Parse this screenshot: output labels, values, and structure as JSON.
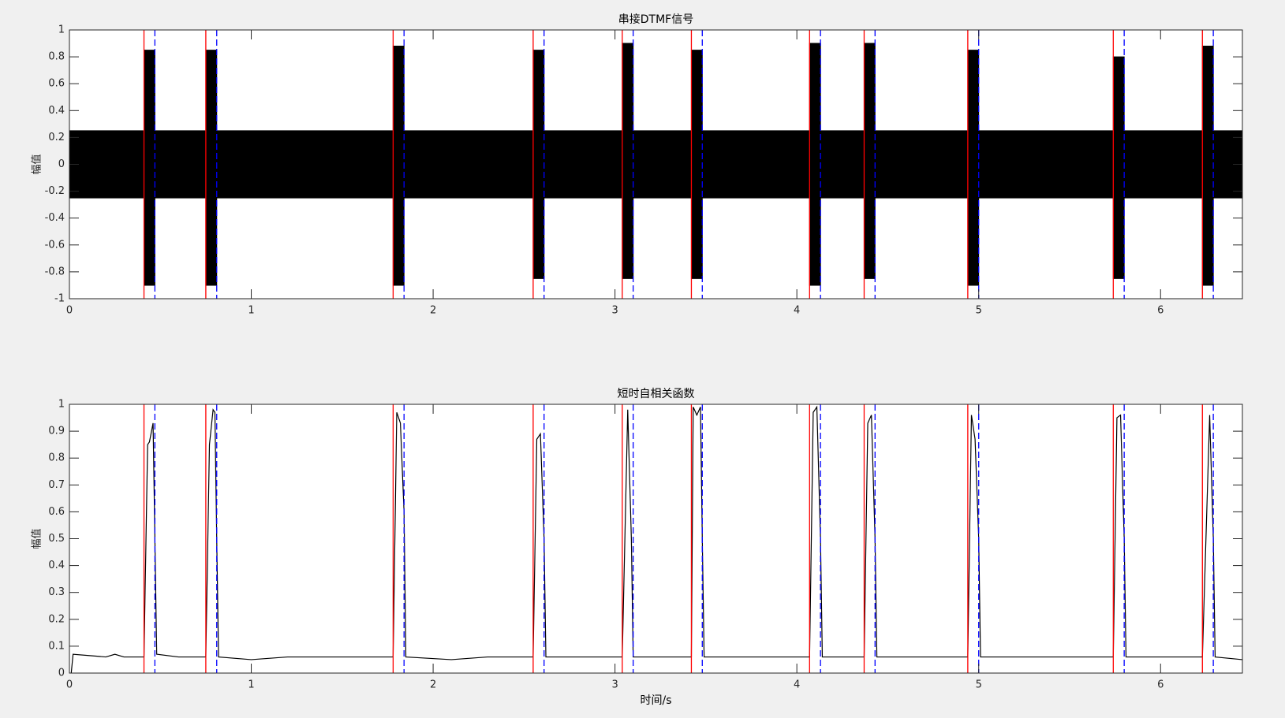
{
  "chart_data": [
    {
      "type": "area",
      "title": "串接DTMF信号",
      "ylabel": "幅值",
      "color": "#000000",
      "x": [
        0,
        0.41,
        0.41,
        0.47,
        0.47,
        0.75,
        0.75,
        0.81,
        0.81,
        1.78,
        1.78,
        1.84,
        1.84,
        2.55,
        2.55,
        2.61,
        2.61,
        3.04,
        3.04,
        3.1,
        3.1,
        3.42,
        3.42,
        3.48,
        3.48,
        4.07,
        4.07,
        4.13,
        4.13,
        4.37,
        4.37,
        4.43,
        4.43,
        4.94,
        4.94,
        5.0,
        5.0,
        5.74,
        5.74,
        5.8,
        5.8,
        6.23,
        6.23,
        6.29,
        6.29,
        6.45
      ],
      "upper": [
        0.25,
        0.25,
        0.85,
        0.85,
        0.25,
        0.25,
        0.85,
        0.85,
        0.25,
        0.25,
        0.88,
        0.88,
        0.25,
        0.25,
        0.85,
        0.85,
        0.25,
        0.25,
        0.9,
        0.9,
        0.25,
        0.25,
        0.85,
        0.85,
        0.25,
        0.25,
        0.9,
        0.9,
        0.25,
        0.25,
        0.9,
        0.9,
        0.25,
        0.25,
        0.85,
        0.85,
        0.25,
        0.25,
        0.8,
        0.8,
        0.25,
        0.25,
        0.88,
        0.88,
        0.25,
        0.25
      ],
      "lower": [
        -0.25,
        -0.25,
        -0.9,
        -0.9,
        -0.25,
        -0.25,
        -0.9,
        -0.9,
        -0.25,
        -0.25,
        -0.9,
        -0.9,
        -0.25,
        -0.25,
        -0.85,
        -0.85,
        -0.25,
        -0.25,
        -0.85,
        -0.85,
        -0.25,
        -0.25,
        -0.85,
        -0.85,
        -0.25,
        -0.25,
        -0.9,
        -0.9,
        -0.25,
        -0.25,
        -0.85,
        -0.85,
        -0.25,
        -0.25,
        -0.9,
        -0.9,
        -0.25,
        -0.25,
        -0.85,
        -0.85,
        -0.25,
        -0.25,
        -0.9,
        -0.9,
        -0.25,
        -0.25
      ],
      "onsets": [
        0.41,
        0.75,
        1.78,
        2.55,
        3.04,
        3.42,
        4.07,
        4.37,
        4.94,
        5.74,
        6.23
      ],
      "offsets": [
        0.47,
        0.81,
        1.84,
        2.61,
        3.1,
        3.48,
        4.13,
        4.43,
        5.0,
        5.8,
        6.29
      ],
      "onset_color": "#ff0000",
      "offset_color": "#0000ff",
      "xlim": [
        0,
        6.45
      ],
      "ylim": [
        -1,
        1
      ],
      "xticks": [
        0,
        1,
        2,
        3,
        4,
        5,
        6
      ],
      "yticks": [
        -1,
        -0.8,
        -0.6,
        -0.4,
        -0.2,
        0,
        0.2,
        0.4,
        0.6,
        0.8,
        1
      ]
    },
    {
      "type": "line",
      "title": "短时自相关函数",
      "ylabel": "幅值",
      "xlabel": "时间/s",
      "color": "#000000",
      "x": [
        0.01,
        0.02,
        0.2,
        0.25,
        0.3,
        0.41,
        0.43,
        0.44,
        0.46,
        0.47,
        0.48,
        0.6,
        0.75,
        0.77,
        0.79,
        0.8,
        0.81,
        0.82,
        1.0,
        1.2,
        1.4,
        1.78,
        1.8,
        1.82,
        1.84,
        1.85,
        2.1,
        2.3,
        2.55,
        2.57,
        2.59,
        2.61,
        2.62,
        2.8,
        3.04,
        3.07,
        3.09,
        3.1,
        3.25,
        3.42,
        3.43,
        3.45,
        3.47,
        3.48,
        3.49,
        3.8,
        4.07,
        4.09,
        4.11,
        4.13,
        4.14,
        4.25,
        4.37,
        4.39,
        4.41,
        4.43,
        4.44,
        4.7,
        4.94,
        4.96,
        4.98,
        5.0,
        5.01,
        5.3,
        5.6,
        5.74,
        5.76,
        5.78,
        5.8,
        5.81,
        6.0,
        6.23,
        6.27,
        6.29,
        6.3,
        6.45
      ],
      "values": [
        0,
        0.07,
        0.06,
        0.07,
        0.06,
        0.06,
        0.85,
        0.86,
        0.93,
        0.5,
        0.07,
        0.06,
        0.06,
        0.85,
        0.98,
        0.97,
        0.5,
        0.06,
        0.05,
        0.06,
        0.06,
        0.06,
        0.97,
        0.93,
        0.6,
        0.06,
        0.05,
        0.06,
        0.06,
        0.87,
        0.89,
        0.5,
        0.06,
        0.06,
        0.06,
        0.98,
        0.5,
        0.06,
        0.06,
        0.06,
        0.99,
        0.96,
        0.99,
        0.5,
        0.06,
        0.06,
        0.06,
        0.97,
        0.99,
        0.5,
        0.06,
        0.06,
        0.06,
        0.93,
        0.96,
        0.5,
        0.06,
        0.06,
        0.06,
        0.96,
        0.87,
        0.5,
        0.06,
        0.06,
        0.06,
        0.06,
        0.95,
        0.96,
        0.5,
        0.06,
        0.06,
        0.06,
        0.96,
        0.5,
        0.06,
        0.05
      ],
      "onsets": [
        0.41,
        0.75,
        1.78,
        2.55,
        3.04,
        3.42,
        4.07,
        4.37,
        4.94,
        5.74,
        6.23
      ],
      "offsets": [
        0.47,
        0.81,
        1.84,
        2.61,
        3.1,
        3.48,
        4.13,
        4.43,
        5.0,
        5.8,
        6.29
      ],
      "onset_color": "#ff0000",
      "offset_color": "#0000ff",
      "xlim": [
        0,
        6.45
      ],
      "ylim": [
        0,
        1
      ],
      "xticks": [
        0,
        1,
        2,
        3,
        4,
        5,
        6
      ],
      "yticks": [
        0,
        0.1,
        0.2,
        0.3,
        0.4,
        0.5,
        0.6,
        0.7,
        0.8,
        0.9,
        1
      ]
    }
  ]
}
